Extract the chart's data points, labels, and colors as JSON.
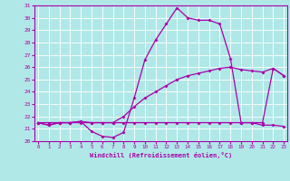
{
  "bg_color": "#b0e8e8",
  "grid_color": "#ffffff",
  "line_color": "#aa00aa",
  "hours": [
    0,
    1,
    2,
    3,
    4,
    5,
    6,
    7,
    8,
    9,
    10,
    11,
    12,
    13,
    14,
    15,
    16,
    17,
    18,
    19,
    20,
    21,
    22,
    23
  ],
  "temp_line": [
    21.5,
    21.3,
    21.5,
    21.5,
    21.6,
    20.8,
    20.4,
    20.3,
    20.7,
    23.5,
    26.6,
    28.2,
    29.5,
    30.8,
    30.0,
    29.8,
    29.8,
    29.5,
    26.7,
    21.5,
    21.5,
    21.5,
    25.9,
    25.3
  ],
  "flat_line": [
    21.5,
    21.3,
    21.5,
    21.5,
    21.6,
    21.5,
    21.5,
    21.5,
    21.5,
    21.5,
    21.5,
    21.5,
    21.5,
    21.5,
    21.5,
    21.5,
    21.5,
    21.5,
    21.5,
    21.5,
    21.5,
    21.3,
    21.3,
    21.2
  ],
  "diag_line": [
    21.5,
    21.5,
    21.5,
    21.5,
    21.5,
    21.5,
    21.5,
    21.5,
    22.0,
    22.8,
    23.5,
    24.0,
    24.5,
    25.0,
    25.3,
    25.5,
    25.7,
    25.9,
    26.0,
    25.8,
    25.7,
    25.6,
    25.9,
    25.3
  ],
  "ylim": [
    20,
    31
  ],
  "xlim": [
    -0.3,
    23.3
  ],
  "xlabel": "Windchill (Refroidissement éolien,°C)",
  "yticks": [
    20,
    21,
    22,
    23,
    24,
    25,
    26,
    27,
    28,
    29,
    30,
    31
  ],
  "xticks": [
    0,
    1,
    2,
    3,
    4,
    5,
    6,
    7,
    8,
    9,
    10,
    11,
    12,
    13,
    14,
    15,
    16,
    17,
    18,
    19,
    20,
    21,
    22,
    23
  ]
}
